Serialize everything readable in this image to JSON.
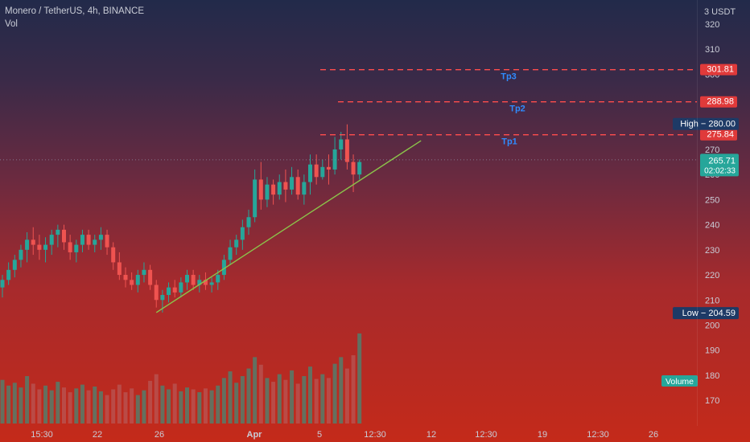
{
  "header": {
    "symbol": "Monero / TetherUS, 4h, BINANCE",
    "indicator": "Vol"
  },
  "axis": {
    "currency": "USDT",
    "currency_prefix": "3",
    "y_ticks": [
      170,
      180,
      190,
      200,
      210,
      220,
      230,
      240,
      250,
      260,
      270,
      280,
      290,
      300,
      310,
      320
    ],
    "x_ticks": [
      "15:30",
      "22",
      "26",
      "Apr",
      "5",
      "12:30",
      "12",
      "12:30",
      "19",
      "12:30",
      "26"
    ]
  },
  "badges": {
    "tp3": "301.81",
    "tp2": "288.98",
    "tp1": "275.84",
    "high": "High − 280.00",
    "low": "Low − 204.59",
    "last_price": "265.71",
    "countdown": "02:02:33",
    "volume": "Volume"
  },
  "labels": {
    "tp3": "Tp3",
    "tp2": "Tp2",
    "tp1": "Tp1"
  },
  "colors": {
    "up": "#26a69a",
    "down": "#ef5350",
    "target_line": "#ff4d4d",
    "trend_line": "#8bc34a",
    "tp_label": "#2f8cff",
    "label_bg": "#1e3a66",
    "price_bg": "#26a69a"
  },
  "chart_data": {
    "type": "candlestick",
    "title": "Monero / TetherUS, 4h, BINANCE",
    "ylim": [
      163,
      327
    ],
    "series": [
      {
        "name": "Price",
        "values": [
          [
            215,
            220,
            211,
            218
          ],
          [
            218,
            225,
            216,
            222
          ],
          [
            222,
            228,
            219,
            226
          ],
          [
            226,
            232,
            223,
            230
          ],
          [
            230,
            237,
            225,
            234
          ],
          [
            234,
            239,
            228,
            232
          ],
          [
            232,
            236,
            226,
            230
          ],
          [
            230,
            235,
            225,
            232
          ],
          [
            232,
            238,
            228,
            236
          ],
          [
            236,
            240,
            231,
            238
          ],
          [
            238,
            240,
            230,
            233
          ],
          [
            233,
            236,
            226,
            229
          ],
          [
            229,
            234,
            225,
            232
          ],
          [
            232,
            238,
            229,
            236
          ],
          [
            236,
            238,
            230,
            232
          ],
          [
            232,
            236,
            229,
            234
          ],
          [
            234,
            239,
            230,
            236
          ],
          [
            236,
            238,
            228,
            231
          ],
          [
            231,
            233,
            222,
            225
          ],
          [
            225,
            229,
            218,
            220
          ],
          [
            220,
            223,
            215,
            218
          ],
          [
            218,
            221,
            214,
            216
          ],
          [
            216,
            222,
            213,
            220
          ],
          [
            220,
            225,
            217,
            222
          ],
          [
            222,
            224,
            214,
            216
          ],
          [
            216,
            218,
            207,
            210
          ],
          [
            210,
            214,
            205,
            212
          ],
          [
            212,
            217,
            209,
            215
          ],
          [
            215,
            218,
            211,
            213
          ],
          [
            213,
            219,
            211,
            217
          ],
          [
            217,
            222,
            214,
            220
          ],
          [
            220,
            222,
            214,
            216
          ],
          [
            216,
            220,
            213,
            218
          ],
          [
            218,
            221,
            214,
            216
          ],
          [
            216,
            219,
            213,
            217
          ],
          [
            217,
            222,
            214,
            220
          ],
          [
            220,
            228,
            218,
            226
          ],
          [
            226,
            234,
            224,
            231
          ],
          [
            231,
            236,
            228,
            234
          ],
          [
            234,
            242,
            230,
            239
          ],
          [
            239,
            246,
            236,
            243
          ],
          [
            243,
            262,
            241,
            258
          ],
          [
            258,
            265,
            246,
            250
          ],
          [
            250,
            259,
            247,
            256
          ],
          [
            256,
            258,
            248,
            252
          ],
          [
            252,
            260,
            250,
            257
          ],
          [
            257,
            262,
            249,
            254
          ],
          [
            254,
            263,
            252,
            259
          ],
          [
            259,
            262,
            250,
            252
          ],
          [
            252,
            260,
            248,
            257
          ],
          [
            257,
            268,
            252,
            264
          ],
          [
            264,
            268,
            256,
            259
          ],
          [
            259,
            266,
            258,
            263
          ],
          [
            263,
            268,
            256,
            262
          ],
          [
            262,
            275,
            260,
            270
          ],
          [
            270,
            277,
            266,
            274
          ],
          [
            274,
            280,
            262,
            265
          ],
          [
            265,
            268,
            253,
            260
          ],
          [
            260,
            266,
            258,
            265
          ]
        ]
      },
      {
        "name": "Volume",
        "values": [
          46,
          40,
          43,
          38,
          50,
          42,
          36,
          40,
          35,
          44,
          38,
          33,
          37,
          41,
          35,
          39,
          34,
          30,
          36,
          41,
          33,
          37,
          30,
          35,
          45,
          52,
          40,
          36,
          42,
          34,
          38,
          36,
          33,
          37,
          35,
          40,
          48,
          55,
          43,
          50,
          58,
          70,
          62,
          48,
          44,
          52,
          46,
          56,
          42,
          50,
          60,
          47,
          52,
          48,
          63,
          70,
          58,
          72,
          95
        ]
      }
    ],
    "horizontal_lines": [
      {
        "label": "Tp3",
        "value": 301.81
      },
      {
        "label": "Tp2",
        "value": 288.98
      },
      {
        "label": "Tp1",
        "value": 275.84
      }
    ],
    "trend_line": {
      "from": [
        25,
        205
      ],
      "to": [
        68,
        273.5
      ]
    },
    "high": 280.0,
    "low": 204.59,
    "last": 265.71
  }
}
